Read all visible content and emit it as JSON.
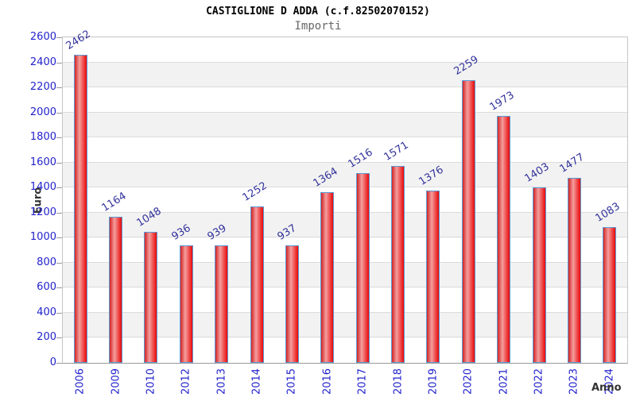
{
  "title": "CASTIGLIONE D ADDA (c.f.82502070152)",
  "subtitle": "Importi",
  "chart_data": {
    "type": "bar",
    "title": "CASTIGLIONE D ADDA (c.f.82502070152)",
    "subtitle": "Importi",
    "xlabel": "Anno",
    "ylabel": "Euro",
    "categories": [
      "2006",
      "2009",
      "2010",
      "2012",
      "2013",
      "2014",
      "2015",
      "2016",
      "2017",
      "2018",
      "2019",
      "2020",
      "2021",
      "2022",
      "2023",
      "2024"
    ],
    "values": [
      2462,
      1164,
      1048,
      936,
      939,
      1252,
      937,
      1364,
      1516,
      1571,
      1376,
      2259,
      1973,
      1403,
      1477,
      1083
    ],
    "ylim": [
      0,
      2600
    ],
    "ytick_step": 200,
    "grid": true,
    "legend_position": "none",
    "background_bands": true,
    "colors": {
      "bar_edge": "#e01515",
      "bar_highlight": "#f59e9e",
      "bar_border": "#5b9bd5",
      "axis_tick_label": "#2222cc",
      "value_label": "#32329b",
      "band": "#f2f2f2",
      "gridline": "#dcdcdc",
      "plot_border": "#c6c6c6",
      "axis_line": "#999999",
      "title_color": "#000000",
      "subtitle_color": "#666666",
      "axis_title_color": "#333333"
    }
  }
}
